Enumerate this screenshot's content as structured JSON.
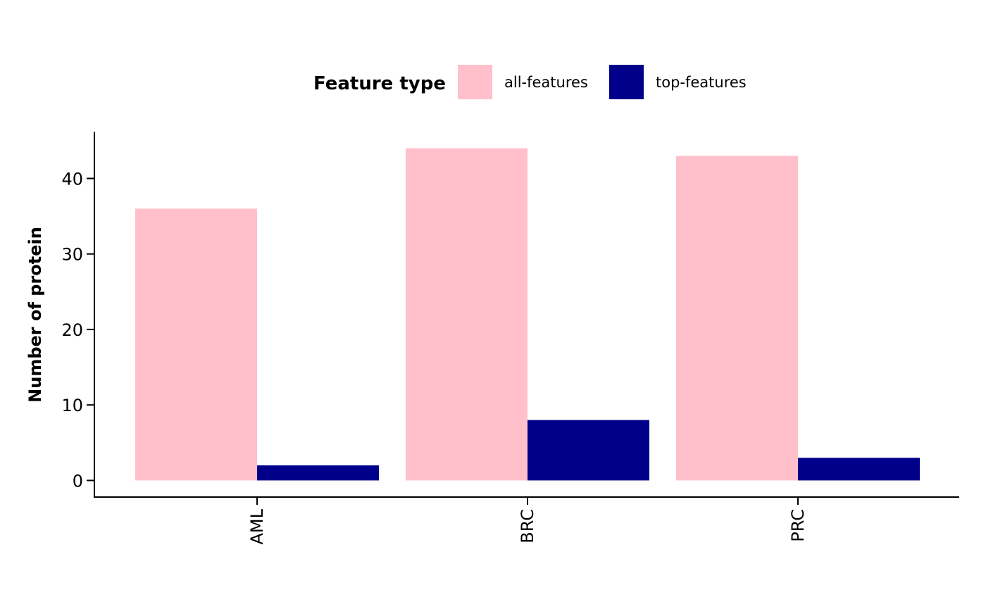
{
  "chart_data": {
    "type": "bar",
    "categories": [
      "AML",
      "BRC",
      "PRC"
    ],
    "series": [
      {
        "name": "all-features",
        "color": "#ffc0cb",
        "values": [
          36,
          44,
          43
        ]
      },
      {
        "name": "top-features",
        "color": "#00008b",
        "values": [
          2,
          8,
          3
        ]
      }
    ],
    "legend": {
      "title": "Feature type",
      "position": "top"
    },
    "xlabel": "",
    "ylabel": "Number of protein",
    "yticks": [
      0,
      10,
      20,
      30,
      40
    ],
    "ylim": [
      -2.2,
      46.2
    ],
    "grid": false
  }
}
